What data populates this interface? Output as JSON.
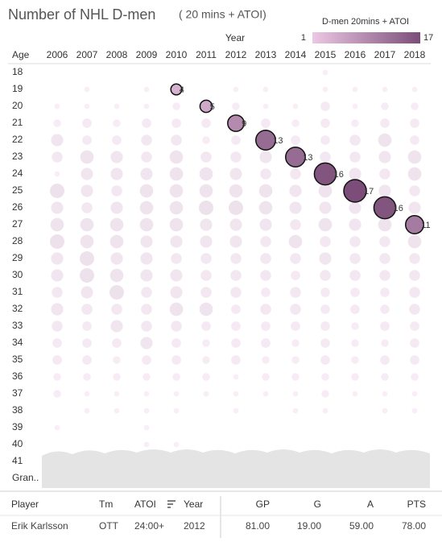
{
  "chart_data": {
    "type": "bubble-grid",
    "title": "Number of NHL D-men",
    "subtitle": "( 20 mins + ATOI)",
    "x_label": "Year",
    "y_label": "Age",
    "legend_title": "D-men 20mins + ATOI",
    "colorlim": [
      1,
      17
    ],
    "colors": [
      "#ecc8e4",
      "#7b4d78"
    ],
    "categories": [
      "2006",
      "2007",
      "2008",
      "2009",
      "2010",
      "2011",
      "2012",
      "2013",
      "2014",
      "2015",
      "2016",
      "2017",
      "2018"
    ],
    "ages": [
      "18",
      "19",
      "20",
      "21",
      "22",
      "23",
      "24",
      "25",
      "26",
      "27",
      "28",
      "29",
      "30",
      "31",
      "32",
      "33",
      "34",
      "35",
      "36",
      "37",
      "38",
      "39",
      "40",
      "41",
      "Gran.."
    ],
    "values": [
      [
        null,
        null,
        null,
        null,
        null,
        null,
        null,
        null,
        null,
        1,
        null,
        null,
        null
      ],
      [
        null,
        1,
        null,
        1,
        null,
        null,
        1,
        1,
        null,
        1,
        1,
        1,
        1
      ],
      [
        1,
        1,
        1,
        1,
        2,
        null,
        2,
        1,
        1,
        3,
        1,
        2,
        2
      ],
      [
        2,
        3,
        2,
        3,
        3,
        3,
        null,
        3,
        2,
        3,
        2,
        3,
        3
      ],
      [
        5,
        3,
        3,
        4,
        4,
        2,
        3,
        null,
        3,
        3,
        4,
        6,
        3
      ],
      [
        4,
        6,
        5,
        4,
        6,
        4,
        4,
        5,
        null,
        4,
        4,
        5,
        6
      ],
      [
        1,
        5,
        5,
        5,
        6,
        6,
        5,
        4,
        4,
        null,
        5,
        4,
        6
      ],
      [
        7,
        5,
        4,
        6,
        6,
        6,
        6,
        6,
        5,
        6,
        null,
        5,
        4
      ],
      [
        5,
        4,
        5,
        6,
        6,
        7,
        7,
        6,
        5,
        5,
        5,
        null,
        5
      ],
      [
        6,
        6,
        6,
        6,
        6,
        5,
        5,
        5,
        4,
        6,
        5,
        6,
        null
      ],
      [
        7,
        6,
        6,
        5,
        5,
        5,
        5,
        4,
        6,
        4,
        4,
        4,
        6
      ],
      [
        5,
        7,
        5,
        5,
        4,
        4,
        4,
        4,
        4,
        5,
        4,
        4,
        4
      ],
      [
        5,
        7,
        6,
        5,
        5,
        4,
        4,
        4,
        3,
        4,
        4,
        4,
        4
      ],
      [
        4,
        5,
        7,
        4,
        5,
        4,
        4,
        3,
        4,
        3,
        3,
        3,
        4
      ],
      [
        5,
        4,
        4,
        4,
        6,
        6,
        3,
        4,
        4,
        3,
        3,
        3,
        4
      ],
      [
        4,
        3,
        5,
        4,
        4,
        3,
        3,
        3,
        3,
        3,
        2,
        3,
        3
      ],
      [
        3,
        3,
        3,
        5,
        3,
        2,
        3,
        3,
        2,
        3,
        2,
        2,
        3
      ],
      [
        3,
        3,
        2,
        3,
        3,
        2,
        3,
        2,
        2,
        3,
        2,
        3,
        3
      ],
      [
        2,
        2,
        2,
        2,
        2,
        2,
        1,
        2,
        2,
        2,
        2,
        2,
        2
      ],
      [
        2,
        1,
        1,
        1,
        1,
        1,
        1,
        1,
        1,
        2,
        1,
        1,
        1
      ],
      [
        null,
        1,
        1,
        1,
        1,
        null,
        1,
        null,
        1,
        1,
        null,
        1,
        1
      ],
      [
        1,
        null,
        null,
        1,
        null,
        null,
        null,
        null,
        null,
        null,
        null,
        null,
        null
      ],
      [
        null,
        null,
        null,
        1,
        1,
        null,
        null,
        null,
        null,
        null,
        null,
        null,
        null
      ],
      [
        null,
        null,
        null,
        null,
        null,
        null,
        null,
        null,
        null,
        null,
        null,
        null,
        null
      ],
      [
        null,
        null,
        null,
        null,
        null,
        null,
        null,
        null,
        null,
        null,
        null,
        null,
        null
      ]
    ],
    "highlights": [
      {
        "age": "19",
        "year": "2010",
        "value": 4
      },
      {
        "age": "20",
        "year": "2011",
        "value": 5
      },
      {
        "age": "21",
        "year": "2012",
        "value": 9
      },
      {
        "age": "22",
        "year": "2013",
        "value": 13
      },
      {
        "age": "23",
        "year": "2014",
        "value": 13
      },
      {
        "age": "24",
        "year": "2015",
        "value": 16
      },
      {
        "age": "25",
        "year": "2016",
        "value": 17
      },
      {
        "age": "26",
        "year": "2017",
        "value": 16
      },
      {
        "age": "27",
        "year": "2018",
        "value": 11
      }
    ]
  },
  "table": {
    "headers": [
      "Player",
      "Tm",
      "ATOI",
      "Year",
      "GP",
      "G",
      "A",
      "PTS"
    ],
    "rows": [
      [
        "Erik Karlsson",
        "OTT",
        "24:00+",
        "2012",
        "81.00",
        "19.00",
        "59.00",
        "78.00"
      ]
    ]
  }
}
